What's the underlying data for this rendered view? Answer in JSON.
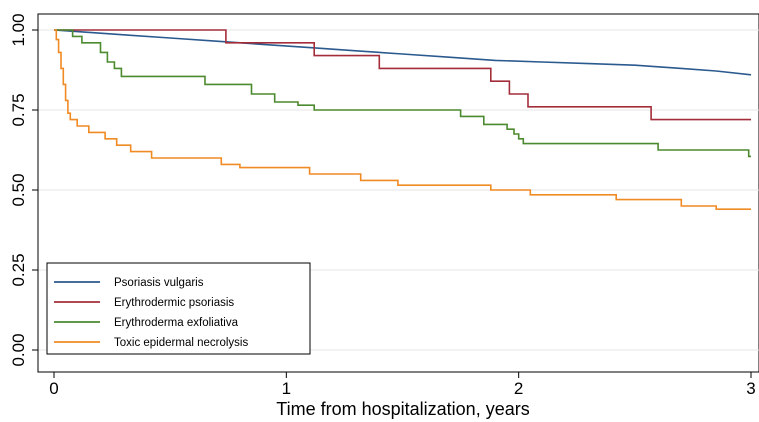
{
  "chart_data": {
    "type": "line",
    "step": true,
    "title": "",
    "xlabel": "Time from hospitalization, years",
    "ylabel": "",
    "xlim": [
      0,
      3
    ],
    "ylim": [
      0,
      1
    ],
    "xticks": [
      0,
      1,
      2,
      3
    ],
    "xtick_labels": [
      "0",
      "1",
      "2",
      "3"
    ],
    "yticks": [
      0,
      0.25,
      0.5,
      0.75,
      1
    ],
    "ytick_labels": [
      "0.00",
      "0.25",
      "0.50",
      "0.75",
      "1.00"
    ],
    "grid": "horizontal",
    "legend_position": "bottom-left",
    "series": [
      {
        "name": "Psoriasis vulgaris",
        "color": "#2b5a8f",
        "points": [
          [
            0,
            1.0
          ],
          [
            0.1,
            0.995
          ],
          [
            0.3,
            0.985
          ],
          [
            0.5,
            0.975
          ],
          [
            0.7,
            0.965
          ],
          [
            0.9,
            0.955
          ],
          [
            1.1,
            0.945
          ],
          [
            1.3,
            0.935
          ],
          [
            1.5,
            0.925
          ],
          [
            1.7,
            0.915
          ],
          [
            1.9,
            0.905
          ],
          [
            2.1,
            0.9
          ],
          [
            2.3,
            0.895
          ],
          [
            2.5,
            0.89
          ],
          [
            2.7,
            0.88
          ],
          [
            2.85,
            0.872
          ],
          [
            3.0,
            0.86
          ]
        ]
      },
      {
        "name": "Erythrodermic psoriasis",
        "color": "#a32e3a",
        "points": [
          [
            0,
            1.0
          ],
          [
            0.74,
            1.0
          ],
          [
            0.74,
            0.96
          ],
          [
            1.12,
            0.96
          ],
          [
            1.12,
            0.92
          ],
          [
            1.4,
            0.92
          ],
          [
            1.4,
            0.88
          ],
          [
            1.88,
            0.88
          ],
          [
            1.88,
            0.84
          ],
          [
            1.96,
            0.84
          ],
          [
            1.96,
            0.8
          ],
          [
            2.04,
            0.8
          ],
          [
            2.04,
            0.76
          ],
          [
            2.57,
            0.76
          ],
          [
            2.57,
            0.72
          ],
          [
            3.0,
            0.72
          ]
        ]
      },
      {
        "name": "Erythroderma exfoliativa",
        "color": "#4c8a2f",
        "points": [
          [
            0,
            1.0
          ],
          [
            0.08,
            1.0
          ],
          [
            0.08,
            0.98
          ],
          [
            0.12,
            0.98
          ],
          [
            0.12,
            0.96
          ],
          [
            0.2,
            0.96
          ],
          [
            0.2,
            0.93
          ],
          [
            0.23,
            0.93
          ],
          [
            0.23,
            0.9
          ],
          [
            0.26,
            0.9
          ],
          [
            0.26,
            0.88
          ],
          [
            0.29,
            0.88
          ],
          [
            0.29,
            0.855
          ],
          [
            0.65,
            0.855
          ],
          [
            0.65,
            0.83
          ],
          [
            0.85,
            0.83
          ],
          [
            0.85,
            0.8
          ],
          [
            0.95,
            0.8
          ],
          [
            0.95,
            0.775
          ],
          [
            1.05,
            0.775
          ],
          [
            1.05,
            0.765
          ],
          [
            1.12,
            0.765
          ],
          [
            1.12,
            0.75
          ],
          [
            1.75,
            0.75
          ],
          [
            1.75,
            0.73
          ],
          [
            1.85,
            0.73
          ],
          [
            1.85,
            0.705
          ],
          [
            1.95,
            0.705
          ],
          [
            1.95,
            0.69
          ],
          [
            1.98,
            0.69
          ],
          [
            1.98,
            0.675
          ],
          [
            2.0,
            0.675
          ],
          [
            2.0,
            0.66
          ],
          [
            2.02,
            0.66
          ],
          [
            2.02,
            0.645
          ],
          [
            2.6,
            0.645
          ],
          [
            2.6,
            0.625
          ],
          [
            2.99,
            0.625
          ],
          [
            2.99,
            0.605
          ],
          [
            3.0,
            0.605
          ]
        ]
      },
      {
        "name": "Toxic epidermal necrolysis",
        "color": "#f08a24",
        "points": [
          [
            0,
            1.0
          ],
          [
            0.01,
            1.0
          ],
          [
            0.01,
            0.97
          ],
          [
            0.02,
            0.97
          ],
          [
            0.02,
            0.93
          ],
          [
            0.03,
            0.93
          ],
          [
            0.03,
            0.88
          ],
          [
            0.04,
            0.88
          ],
          [
            0.04,
            0.83
          ],
          [
            0.05,
            0.83
          ],
          [
            0.05,
            0.78
          ],
          [
            0.06,
            0.78
          ],
          [
            0.06,
            0.74
          ],
          [
            0.07,
            0.74
          ],
          [
            0.07,
            0.72
          ],
          [
            0.1,
            0.72
          ],
          [
            0.1,
            0.7
          ],
          [
            0.15,
            0.7
          ],
          [
            0.15,
            0.68
          ],
          [
            0.22,
            0.68
          ],
          [
            0.22,
            0.66
          ],
          [
            0.27,
            0.66
          ],
          [
            0.27,
            0.64
          ],
          [
            0.33,
            0.64
          ],
          [
            0.33,
            0.62
          ],
          [
            0.42,
            0.62
          ],
          [
            0.42,
            0.6
          ],
          [
            0.72,
            0.6
          ],
          [
            0.72,
            0.58
          ],
          [
            0.8,
            0.58
          ],
          [
            0.8,
            0.57
          ],
          [
            1.1,
            0.57
          ],
          [
            1.1,
            0.55
          ],
          [
            1.32,
            0.55
          ],
          [
            1.32,
            0.53
          ],
          [
            1.48,
            0.53
          ],
          [
            1.48,
            0.515
          ],
          [
            1.88,
            0.515
          ],
          [
            1.88,
            0.5
          ],
          [
            2.05,
            0.5
          ],
          [
            2.05,
            0.485
          ],
          [
            2.42,
            0.485
          ],
          [
            2.42,
            0.47
          ],
          [
            2.7,
            0.47
          ],
          [
            2.7,
            0.45
          ],
          [
            2.85,
            0.45
          ],
          [
            2.85,
            0.44
          ],
          [
            3.0,
            0.44
          ]
        ]
      }
    ]
  }
}
